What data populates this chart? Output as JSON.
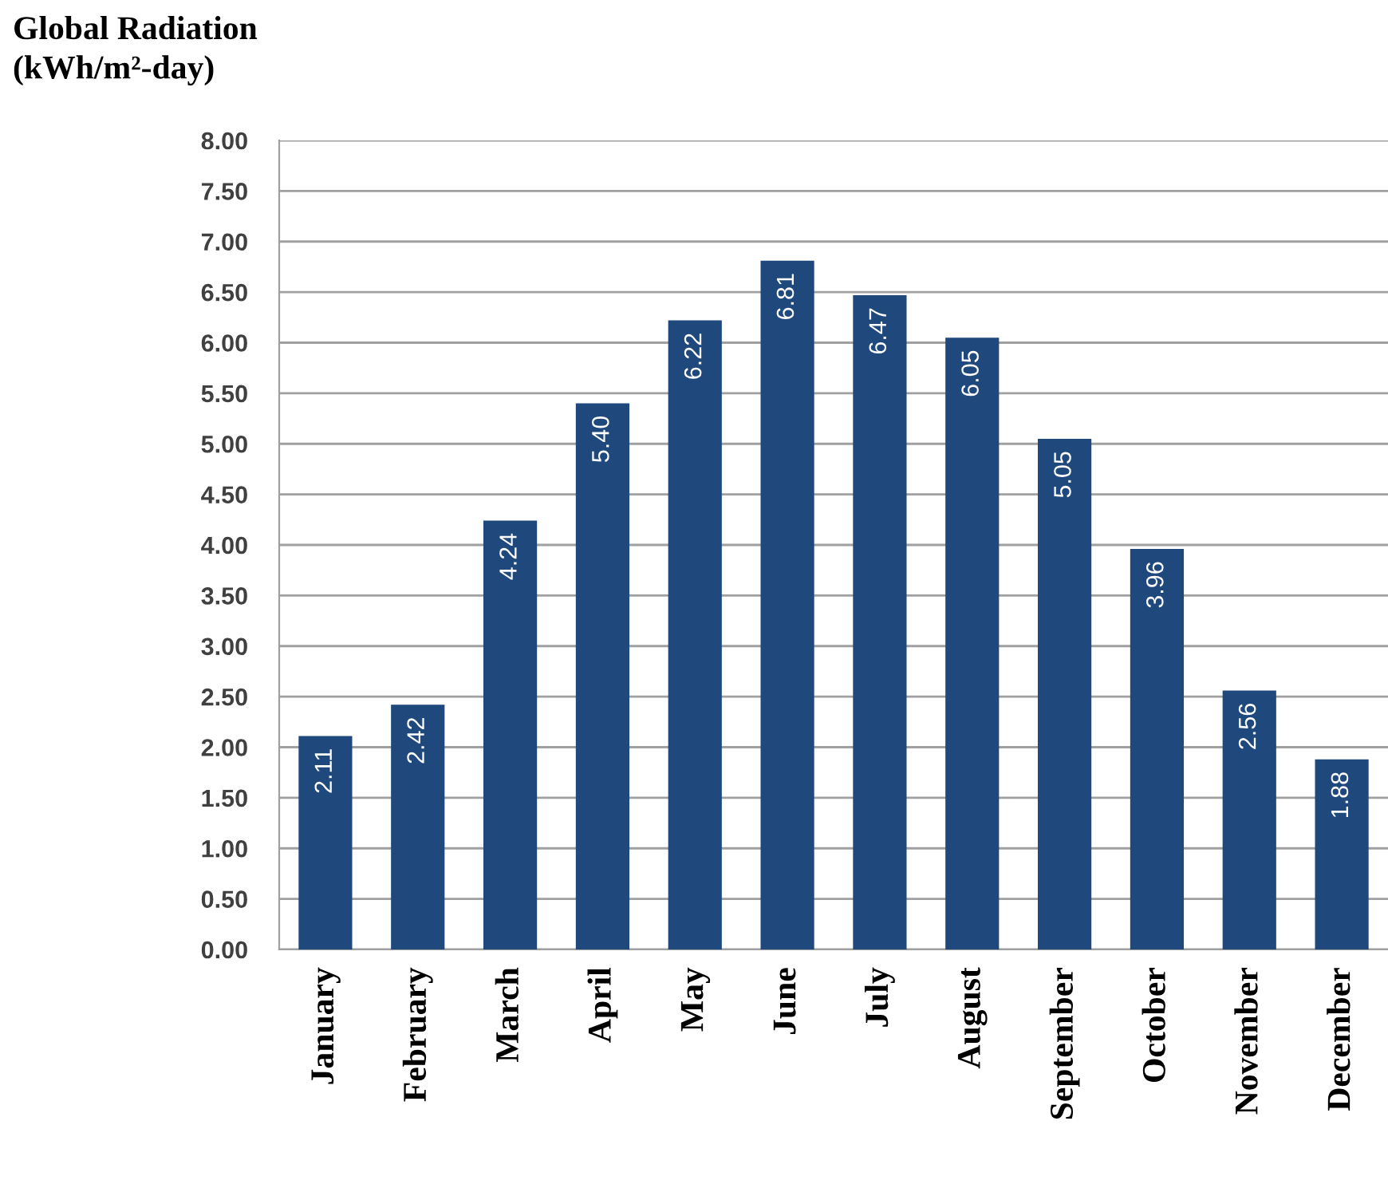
{
  "chart_data": {
    "type": "bar",
    "ylabel": "Global Radiation\n(kWh/m²-day)",
    "categories": [
      "January",
      "February",
      "March",
      "April",
      "May",
      "June",
      "July",
      "August",
      "September",
      "October",
      "November",
      "December"
    ],
    "values": [
      2.11,
      2.42,
      4.24,
      5.4,
      6.22,
      6.81,
      6.47,
      6.05,
      5.05,
      3.96,
      2.56,
      1.88
    ],
    "value_labels": [
      "2.11",
      "2.42",
      "4.24",
      "5.40",
      "6.22",
      "6.81",
      "6.47",
      "6.05",
      "5.05",
      "3.96",
      "2.56",
      "1.88"
    ],
    "color": "#1f497d",
    "ylim": [
      0,
      8
    ],
    "yticks": [
      {
        "value": 0,
        "label": "0.00"
      },
      {
        "value": 0.5,
        "label": "0.50"
      },
      {
        "value": 1,
        "label": "1.00"
      },
      {
        "value": 1.5,
        "label": "1.50"
      },
      {
        "value": 2,
        "label": "2.00"
      },
      {
        "value": 2.5,
        "label": "2.50"
      },
      {
        "value": 3,
        "label": "3.00"
      },
      {
        "value": 3.5,
        "label": "3.50"
      },
      {
        "value": 4,
        "label": "4.00"
      },
      {
        "value": 4.5,
        "label": "4.50"
      },
      {
        "value": 5,
        "label": "5.00"
      },
      {
        "value": 5.5,
        "label": "5.50"
      },
      {
        "value": 6,
        "label": "6.00"
      },
      {
        "value": 6.5,
        "label": "6.50"
      },
      {
        "value": 7,
        "label": "7.00"
      },
      {
        "value": 7.5,
        "label": "7.50"
      },
      {
        "value": 8,
        "label": "8.00"
      }
    ],
    "grid": "y"
  }
}
